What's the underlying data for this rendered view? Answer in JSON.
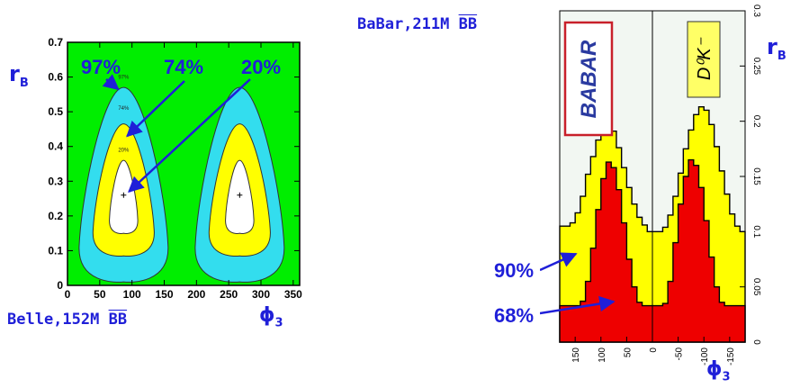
{
  "left": {
    "caption_prefix": "Belle,152M ",
    "caption_bb": "BB",
    "y_symbol": "r",
    "y_sub": "B",
    "x_symbol": "ϕ",
    "x_sub": "3",
    "pct_labels": [
      "97%",
      "74%",
      "20%"
    ],
    "inner_labels": [
      "97%",
      "74%",
      "20%"
    ]
  },
  "right": {
    "caption_prefix": "BaBar,211M ",
    "caption_bb": "BB",
    "y_symbol": "r",
    "y_sub": "B",
    "x_symbol": "ϕ",
    "x_sub": "3",
    "logo": "BABAR",
    "mode_label": "D⁰K⁻",
    "pct_labels": [
      "90%",
      "68%"
    ]
  },
  "chart_data": [
    {
      "type": "contour",
      "xlim": [
        0,
        360
      ],
      "ylim": [
        0,
        0.7
      ],
      "x_ticks": [
        0,
        50,
        100,
        150,
        200,
        250,
        300,
        350
      ],
      "y_ticks": [
        0,
        0.1,
        0.2,
        0.3,
        0.4,
        0.5,
        0.6,
        0.7
      ],
      "best_fit": [
        {
          "x": 87,
          "y": 0.26
        },
        {
          "x": 267,
          "y": 0.26
        }
      ],
      "levels": [
        {
          "cl": "97%",
          "color": "#33ddee",
          "lobes": [
            {
              "phi_min": 20,
              "phi_max": 158,
              "peak_phi": 87,
              "r_min": 0.01,
              "r_max": 0.57
            },
            {
              "phi_min": 200,
              "phi_max": 338,
              "peak_phi": 267,
              "r_min": 0.01,
              "r_max": 0.57
            }
          ]
        },
        {
          "cl": "74%",
          "color": "#ffff00",
          "lobes": [
            {
              "phi_min": 40,
              "phi_max": 135,
              "peak_phi": 87,
              "r_min": 0.085,
              "r_max": 0.465
            },
            {
              "phi_min": 220,
              "phi_max": 315,
              "peak_phi": 267,
              "r_min": 0.085,
              "r_max": 0.465
            }
          ]
        },
        {
          "cl": "20%",
          "color": "#ffffff",
          "lobes": [
            {
              "phi_min": 63,
              "phi_max": 107,
              "peak_phi": 87,
              "r_min": 0.15,
              "r_max": 0.36
            },
            {
              "phi_min": 243,
              "phi_max": 287,
              "peak_phi": 267,
              "r_min": 0.15,
              "r_max": 0.36
            }
          ]
        }
      ],
      "background_color": "#00ee00"
    },
    {
      "type": "area",
      "orientation": "rotated",
      "x_ticks": [
        150,
        100,
        50,
        0,
        -50,
        -100,
        -150
      ],
      "y_ticks": [
        0,
        0.05,
        0.1,
        0.15,
        0.2,
        0.25,
        0.3
      ],
      "xlim": [
        180,
        -180
      ],
      "ylim": [
        0,
        0.3
      ],
      "series": [
        {
          "cl": "90%",
          "color": "#ffff00",
          "x": [
            180,
            170,
            160,
            150,
            140,
            130,
            120,
            110,
            100,
            90,
            80,
            70,
            60,
            50,
            40,
            30,
            20,
            10,
            0,
            -10,
            -20,
            -30,
            -40,
            -50,
            -60,
            -70,
            -80,
            -90,
            -100,
            -110,
            -120,
            -130,
            -140,
            -150,
            -160,
            -170,
            -180
          ],
          "y": [
            0.105,
            0.105,
            0.108,
            0.117,
            0.132,
            0.152,
            0.168,
            0.183,
            0.193,
            0.198,
            0.191,
            0.176,
            0.158,
            0.14,
            0.125,
            0.113,
            0.106,
            0.1,
            0.1,
            0.1,
            0.104,
            0.115,
            0.132,
            0.153,
            0.175,
            0.192,
            0.206,
            0.213,
            0.21,
            0.197,
            0.177,
            0.155,
            0.134,
            0.116,
            0.105,
            0.1,
            0.098
          ]
        },
        {
          "cl": "68%",
          "color": "#ee0000",
          "x": [
            180,
            170,
            160,
            150,
            140,
            130,
            120,
            110,
            100,
            90,
            80,
            70,
            60,
            50,
            40,
            30,
            20,
            10,
            0,
            -10,
            -20,
            -30,
            -40,
            -50,
            -60,
            -70,
            -80,
            -90,
            -100,
            -110,
            -120,
            -130,
            -140,
            -150,
            -160,
            -170,
            -180
          ],
          "y": [
            0.033,
            0.033,
            0.033,
            0.033,
            0.037,
            0.055,
            0.085,
            0.12,
            0.148,
            0.163,
            0.158,
            0.138,
            0.108,
            0.075,
            0.05,
            0.036,
            0.033,
            0.033,
            0.033,
            0.033,
            0.035,
            0.055,
            0.09,
            0.125,
            0.15,
            0.165,
            0.16,
            0.14,
            0.11,
            0.077,
            0.05,
            0.036,
            0.033,
            0.033,
            0.033,
            0.033,
            0.033
          ]
        }
      ]
    }
  ]
}
